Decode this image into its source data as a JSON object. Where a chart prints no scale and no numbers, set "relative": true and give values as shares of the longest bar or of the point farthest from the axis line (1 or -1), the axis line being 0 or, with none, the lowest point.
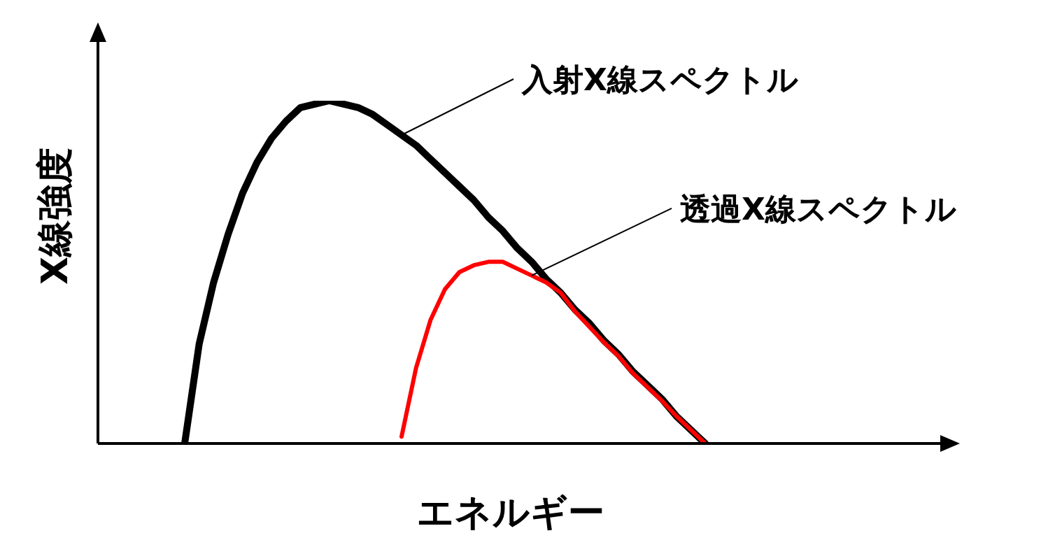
{
  "chart_data": {
    "type": "line",
    "relative": true,
    "xlabel": "エネルギー",
    "ylabel": "X線強度",
    "marker": "none",
    "line_style": "solid",
    "categories": [
      null,
      null,
      null,
      null,
      null,
      null,
      null,
      null,
      null,
      null,
      null,
      null,
      null,
      null,
      null,
      null,
      null,
      null,
      null,
      null,
      null,
      null,
      null,
      null,
      null,
      null,
      null,
      null,
      null,
      null,
      null,
      null,
      null,
      null,
      null,
      null,
      null,
      null,
      null,
      null,
      null,
      null,
      null,
      null,
      null,
      null,
      null,
      null,
      null,
      null,
      null,
      null,
      null,
      null,
      null
    ],
    "series": [
      {
        "name": "入射X線スペクトル",
        "color": "#000000",
        "values": [
          null,
          null,
          null,
          null,
          null,
          null,
          0,
          0.29,
          0.47,
          0.61,
          0.73,
          0.82,
          0.89,
          0.94,
          0.98,
          0.99,
          1,
          0.99,
          0.98,
          0.96,
          0.93,
          0.9,
          0.87,
          0.83,
          0.79,
          0.75,
          0.71,
          0.66,
          0.62,
          0.57,
          0.53,
          0.48,
          0.44,
          0.39,
          0.35,
          0.3,
          0.26,
          0.21,
          0.17,
          0.13,
          0.08,
          0.04,
          0,
          null,
          null,
          null,
          null,
          null,
          null,
          null,
          null,
          null,
          null,
          null,
          null
        ]
      },
      {
        "name": "透過X線スペクトル",
        "color": "#ff0000",
        "values": [
          null,
          null,
          null,
          null,
          null,
          null,
          null,
          null,
          null,
          null,
          null,
          null,
          null,
          null,
          null,
          null,
          null,
          null,
          null,
          null,
          null,
          0.02,
          0.22,
          0.36,
          0.45,
          0.5,
          0.52,
          0.53,
          0.53,
          0.51,
          0.49,
          0.47,
          0.44,
          0.385,
          0.34,
          0.295,
          0.255,
          0.205,
          0.165,
          0.125,
          0.08,
          0.04,
          0,
          null,
          null,
          null,
          null,
          null,
          null,
          null,
          null,
          null,
          null,
          null,
          null
        ]
      }
    ]
  }
}
